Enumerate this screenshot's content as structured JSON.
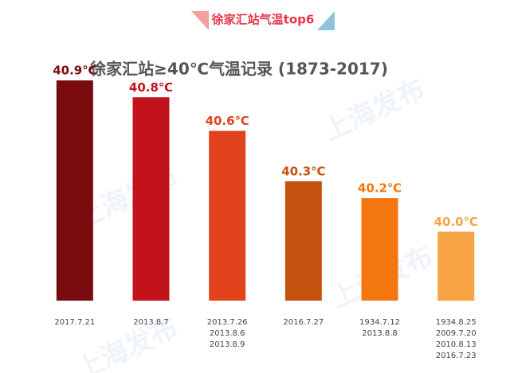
{
  "header": "徐家汇站气温top6",
  "watermark": "上海发布",
  "chart_data": {
    "type": "bar",
    "title": "徐家汇站≥40℃气温记录 (1873-2017)",
    "categories": [
      [
        "2017.7.21"
      ],
      [
        "2013.8.7"
      ],
      [
        "2013.7.26",
        "2013.8.6",
        "2013.8.9"
      ],
      [
        "2016.7.27"
      ],
      [
        "1934.7.12",
        "2013.8.8"
      ],
      [
        "1934.8.25",
        "2009.7.20",
        "2010.8.13",
        "2016.7.23"
      ]
    ],
    "values": [
      40.9,
      40.8,
      40.6,
      40.3,
      40.2,
      40.0
    ],
    "value_labels": [
      "40.9℃",
      "40.8℃",
      "40.6℃",
      "40.3℃",
      "40.2℃",
      "40.0℃"
    ],
    "colors": [
      "#7a0b0f",
      "#c2121c",
      "#e2421c",
      "#c4520f",
      "#f3760f",
      "#f6a444"
    ],
    "ylim": [
      39.59,
      41.0
    ]
  }
}
